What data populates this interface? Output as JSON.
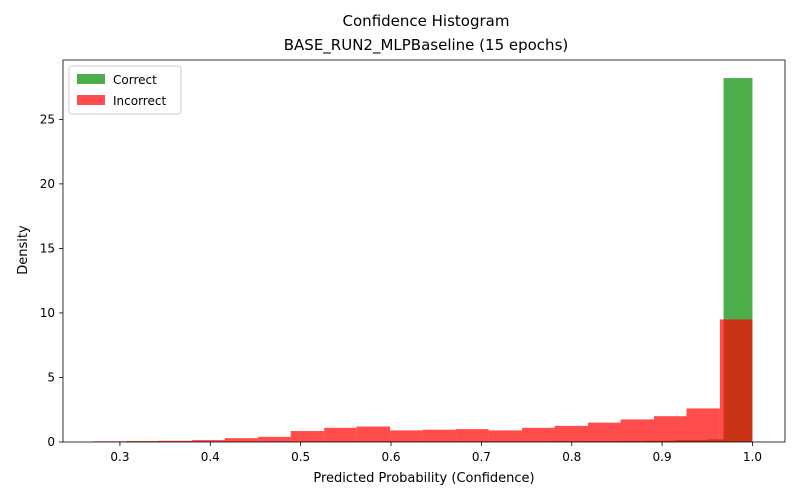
{
  "chart_data": {
    "type": "bar",
    "title": "Confidence Histogram",
    "subtitle": "BASE_RUN2_MLPBaseline (15 epochs)",
    "xlabel": "Predicted Probability (Confidence)",
    "ylabel": "Density",
    "xlim": [
      0.237,
      1.036
    ],
    "ylim": [
      0,
      29.6
    ],
    "x_ticks": [
      0.3,
      0.4,
      0.5,
      0.6,
      0.7,
      0.8,
      0.9,
      1.0
    ],
    "x_tick_labels": [
      "0.3",
      "0.4",
      "0.5",
      "0.6",
      "0.7",
      "0.8",
      "0.9",
      "1.0"
    ],
    "y_ticks": [
      0,
      5,
      10,
      15,
      20,
      25
    ],
    "y_tick_labels": [
      "0",
      "5",
      "10",
      "15",
      "20",
      "25"
    ],
    "legend_position": "top-left",
    "series": [
      {
        "name": "Correct",
        "color": "#2ca02c",
        "opacity": 0.85,
        "bins": [
          [
            0.27,
            0.27,
            0.0
          ]
        ],
        "bin_edges": [
          0.5,
          0.53,
          0.566,
          0.6,
          0.636,
          0.67,
          0.705,
          0.74,
          0.775,
          0.81,
          0.845,
          0.88,
          0.915,
          0.95,
          0.968,
          1.0
        ],
        "values": [
          0.05,
          0.05,
          0.05,
          0.05,
          0.05,
          0.05,
          0.05,
          0.05,
          0.06,
          0.07,
          0.08,
          0.1,
          0.15,
          0.2,
          28.2
        ]
      },
      {
        "name": "Incorrect",
        "color": "#ff0000",
        "opacity": 0.7,
        "bin_edges": [
          0.27,
          0.307,
          0.343,
          0.38,
          0.416,
          0.453,
          0.489,
          0.526,
          0.562,
          0.599,
          0.635,
          0.672,
          0.708,
          0.745,
          0.781,
          0.818,
          0.854,
          0.891,
          0.927,
          0.964,
          1.0
        ],
        "values": [
          0.05,
          0.08,
          0.1,
          0.15,
          0.3,
          0.4,
          0.85,
          1.1,
          1.2,
          0.9,
          0.95,
          1.0,
          0.9,
          1.1,
          1.25,
          1.5,
          1.75,
          2.0,
          2.6,
          9.5
        ]
      }
    ]
  }
}
